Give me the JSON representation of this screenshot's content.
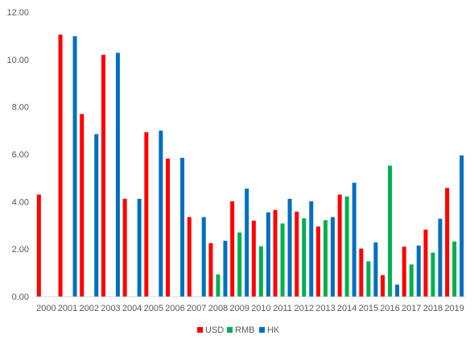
{
  "chart_data": {
    "type": "bar",
    "categories": [
      "2000",
      "2001",
      "2002",
      "2003",
      "2004",
      "2005",
      "2006",
      "2007",
      "2008",
      "2009",
      "2010",
      "2011",
      "2012",
      "2013",
      "2014",
      "2015",
      "2016",
      "2017",
      "2018",
      "2019"
    ],
    "series": [
      {
        "name": "USD",
        "color": "#ff0000",
        "values": [
          4.3,
          11.05,
          7.7,
          10.2,
          4.12,
          6.93,
          5.82,
          3.35,
          2.25,
          4.02,
          3.2,
          3.65,
          3.58,
          2.95,
          4.3,
          2.02,
          0.9,
          2.1,
          2.82,
          4.58
        ]
      },
      {
        "name": "RMB",
        "color": "#00b050",
        "values": [
          null,
          null,
          null,
          null,
          null,
          null,
          null,
          null,
          0.93,
          2.7,
          2.12,
          3.08,
          3.3,
          3.22,
          4.22,
          1.48,
          5.52,
          1.35,
          1.85,
          2.32
        ]
      },
      {
        "name": "HK",
        "color": "#0070c0",
        "values": [
          null,
          10.98,
          6.85,
          10.28,
          4.12,
          7.0,
          5.85,
          3.35,
          2.35,
          4.55,
          3.55,
          4.12,
          4.02,
          3.35,
          4.8,
          2.28,
          0.5,
          2.15,
          3.28,
          5.95
        ]
      }
    ],
    "y_ticks": [
      "0.00",
      "2.00",
      "4.00",
      "6.00",
      "8.00",
      "10.00",
      "12.00"
    ],
    "ylim": [
      0,
      12
    ],
    "grid": false,
    "legend": "bottom"
  }
}
